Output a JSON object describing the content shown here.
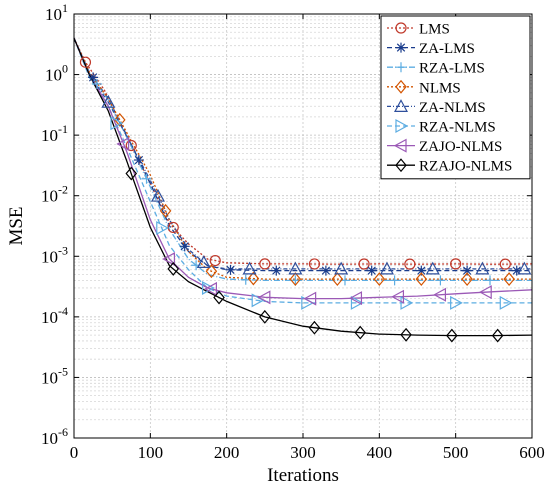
{
  "chart_data": {
    "type": "line",
    "xlabel": "Iterations",
    "ylabel": "MSE",
    "xlim": [
      0,
      600
    ],
    "ylim": [
      1e-06,
      10
    ],
    "yscale": "log",
    "grid": true,
    "legend_position": "top-right",
    "x_ticks": [
      {
        "value": 0,
        "label": "0"
      },
      {
        "value": 100,
        "label": "100"
      },
      {
        "value": 200,
        "label": "200"
      },
      {
        "value": 300,
        "label": "300"
      },
      {
        "value": 400,
        "label": "400"
      },
      {
        "value": 500,
        "label": "500"
      },
      {
        "value": 600,
        "label": "600"
      }
    ],
    "y_ticks": [
      {
        "value": 10,
        "base": "10",
        "exp": "1"
      },
      {
        "value": 1,
        "base": "10",
        "exp": "0"
      },
      {
        "value": 0.1,
        "base": "10",
        "exp": "-1"
      },
      {
        "value": 0.01,
        "base": "10",
        "exp": "-2"
      },
      {
        "value": 0.001,
        "base": "10",
        "exp": "-3"
      },
      {
        "value": 0.0001,
        "base": "10",
        "exp": "-4"
      },
      {
        "value": 1e-05,
        "base": "10",
        "exp": "-5"
      },
      {
        "value": 1e-06,
        "base": "10",
        "exp": "-6"
      }
    ],
    "series": [
      {
        "name": "LMS",
        "color": "#c0392b",
        "dash": "2,2",
        "marker": "circle",
        "x": [
          0,
          15,
          40,
          70,
          100,
          125,
          150,
          175,
          200,
          250,
          300,
          350,
          400,
          450,
          500,
          550,
          600
        ],
        "y": [
          4,
          1.6,
          0.55,
          0.09,
          0.016,
          0.0035,
          0.0016,
          0.0009,
          0.00078,
          0.00075,
          0.00075,
          0.00074,
          0.00075,
          0.00074,
          0.00075,
          0.00074,
          0.00075
        ],
        "marker_x": [
          15,
          75,
          130,
          185,
          250,
          315,
          380,
          440,
          500,
          565
        ]
      },
      {
        "name": "ZA-LMS",
        "color": "#1a3c8c",
        "dash": "5,3",
        "marker": "star",
        "x": [
          0,
          20,
          45,
          75,
          100,
          125,
          150,
          175,
          200,
          250,
          300,
          350,
          400,
          450,
          500,
          550,
          600
        ],
        "y": [
          4,
          1.1,
          0.4,
          0.07,
          0.016,
          0.0032,
          0.0012,
          0.0007,
          0.0006,
          0.00058,
          0.00058,
          0.00058,
          0.00058,
          0.00058,
          0.00058,
          0.00058,
          0.00058
        ],
        "marker_x": [
          25,
          85,
          145,
          205,
          265,
          330,
          390,
          455,
          515,
          580
        ]
      },
      {
        "name": "RZA-LMS",
        "color": "#5dade2",
        "dash": "6,2,1,2",
        "marker": "plus",
        "x": [
          0,
          20,
          45,
          75,
          100,
          125,
          150,
          175,
          200,
          250,
          300,
          350,
          400,
          450,
          500,
          550,
          600
        ],
        "y": [
          4,
          1.05,
          0.38,
          0.065,
          0.014,
          0.0028,
          0.0009,
          0.0005,
          0.00042,
          0.0004,
          0.0004,
          0.0004,
          0.0004,
          0.0004,
          0.0004,
          0.0004,
          0.0004
        ],
        "marker_x": [
          30,
          95,
          160,
          225,
          290,
          355,
          420,
          480,
          545
        ]
      },
      {
        "name": "NLMS",
        "color": "#d35400",
        "dash": "2,2",
        "marker": "diamond",
        "x": [
          0,
          20,
          45,
          75,
          100,
          125,
          150,
          175,
          200,
          250,
          300,
          350,
          400,
          450,
          500,
          550,
          600
        ],
        "y": [
          4,
          1.1,
          0.4,
          0.08,
          0.022,
          0.004,
          0.0012,
          0.0006,
          0.00045,
          0.00042,
          0.00042,
          0.00042,
          0.00042,
          0.00042,
          0.00042,
          0.00042,
          0.00042
        ],
        "marker_x": [
          60,
          120,
          180,
          235,
          290,
          345,
          400,
          455,
          515,
          570
        ]
      },
      {
        "name": "ZA-NLMS",
        "color": "#2e4f9c",
        "dash": "4,2,1,2",
        "marker": "triangle-up",
        "x": [
          0,
          20,
          45,
          75,
          100,
          125,
          150,
          175,
          200,
          250,
          300,
          350,
          400,
          450,
          500,
          550,
          600
        ],
        "y": [
          4,
          1.0,
          0.35,
          0.07,
          0.018,
          0.004,
          0.0013,
          0.0007,
          0.00062,
          0.00062,
          0.00062,
          0.00062,
          0.00062,
          0.00062,
          0.00062,
          0.00062,
          0.00062
        ],
        "marker_x": [
          45,
          110,
          170,
          230,
          290,
          350,
          410,
          470,
          535,
          590
        ]
      },
      {
        "name": "RZA-NLMS",
        "color": "#5dade2",
        "dash": "5,3",
        "marker": "triangle-right",
        "x": [
          0,
          20,
          45,
          70,
          100,
          125,
          150,
          175,
          200,
          250,
          300,
          350,
          400,
          450,
          500,
          550,
          600
        ],
        "y": [
          4,
          0.9,
          0.3,
          0.06,
          0.008,
          0.0015,
          0.0006,
          0.0003,
          0.00022,
          0.00018,
          0.00017,
          0.00017,
          0.00017,
          0.00017,
          0.00017,
          0.00017,
          0.00017
        ],
        "marker_x": [
          55,
          115,
          175,
          240,
          305,
          370,
          435,
          500,
          565
        ]
      },
      {
        "name": "ZAJO-NLMS",
        "color": "#9b59b6",
        "dash": "",
        "marker": "triangle-left",
        "x": [
          0,
          20,
          45,
          70,
          100,
          125,
          150,
          175,
          200,
          250,
          300,
          350,
          400,
          450,
          500,
          550,
          600
        ],
        "y": [
          4,
          1.0,
          0.3,
          0.05,
          0.004,
          0.0009,
          0.00045,
          0.0003,
          0.00025,
          0.00021,
          0.0002,
          0.0002,
          0.00021,
          0.00022,
          0.00024,
          0.00026,
          0.00028
        ],
        "marker_x": [
          65,
          125,
          180,
          250,
          310,
          370,
          425,
          480,
          540
        ]
      },
      {
        "name": "RZAJO-NLMS",
        "color": "#000000",
        "dash": "",
        "marker": "diamond",
        "x": [
          0,
          20,
          45,
          70,
          100,
          125,
          150,
          175,
          200,
          250,
          300,
          350,
          400,
          450,
          500,
          550,
          600
        ],
        "y": [
          4,
          1.0,
          0.25,
          0.035,
          0.003,
          0.0007,
          0.00038,
          0.00026,
          0.00018,
          0.0001,
          7e-05,
          5.8e-05,
          5.2e-05,
          5e-05,
          4.9e-05,
          4.9e-05,
          5e-05
        ],
        "marker_x": [
          75,
          130,
          190,
          250,
          315,
          375,
          435,
          495,
          555
        ]
      }
    ]
  }
}
